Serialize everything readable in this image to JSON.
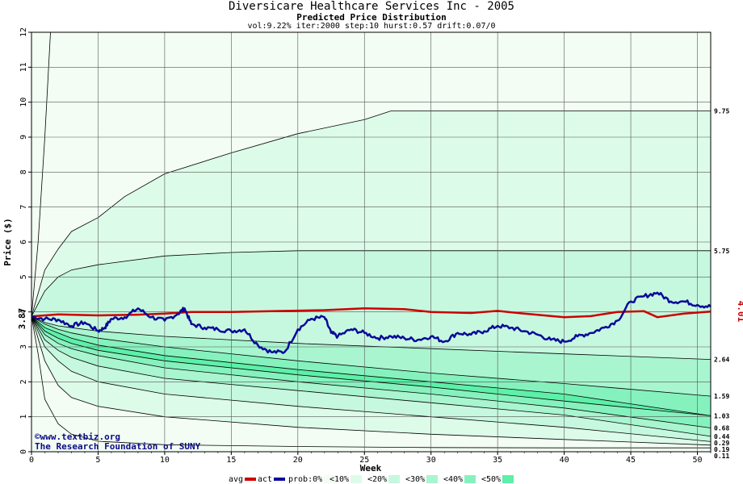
{
  "header": {
    "title": "Diversicare Healthcare Services Inc - 2005",
    "subtitle": "Predicted Price Distribution",
    "params": "vol:9.22% iter:2000 step:10 hurst:0.57 drift:0.07/0"
  },
  "watermark": {
    "line1": "©www.textbiz.org",
    "line2": "The Research Foundation of SUNY"
  },
  "colors": {
    "avg": "#cc0000",
    "act": "#0a0a99",
    "band_0": "#f3fdf3",
    "band_10": "#ddfbe9",
    "band_20": "#c6f8df",
    "band_30": "#a8f5cf",
    "band_40": "#85f2be",
    "band_50": "#5cf0a8",
    "grid": "#555555"
  },
  "chart_data": {
    "type": "line",
    "xlabel": "Week",
    "ylabel": "Price ($)",
    "xlim": [
      0,
      51
    ],
    "ylim": [
      0,
      12
    ],
    "xticks": [
      0,
      5,
      10,
      15,
      20,
      25,
      30,
      35,
      40,
      45,
      50
    ],
    "yticks": [
      0,
      1,
      2,
      3,
      4,
      5,
      6,
      7,
      8,
      9,
      10,
      11,
      12
    ],
    "start_price_label": "3.87",
    "end_price_label": "4.01",
    "right_labels": [
      {
        "value": 9.75,
        "label": "9.75"
      },
      {
        "value": 5.75,
        "label": "5.75"
      },
      {
        "value": 2.64,
        "label": "2.64"
      },
      {
        "value": 1.59,
        "label": "1.59"
      },
      {
        "value": 1.03,
        "label": "1.03"
      },
      {
        "value": 0.68,
        "label": "0.68"
      },
      {
        "value": 0.44,
        "label": "0.44"
      },
      {
        "value": 0.29,
        "label": "0.29"
      },
      {
        "value": 0.19,
        "label": "0.19"
      },
      {
        "value": 0.11,
        "label": "0.11"
      }
    ],
    "bands": [
      {
        "name": "prob:0%",
        "upper": [
          [
            0,
            3.87
          ],
          [
            0.5,
            6
          ],
          [
            1,
            9
          ],
          [
            1.5,
            12.5
          ]
        ],
        "lower": [
          [
            0,
            3.87
          ],
          [
            0.5,
            2.8
          ],
          [
            1,
            1.5
          ],
          [
            2,
            0.8
          ],
          [
            3,
            0.5
          ],
          [
            5,
            0.3
          ],
          [
            10,
            0.2
          ],
          [
            20,
            0.15
          ],
          [
            30,
            0.12
          ],
          [
            40,
            0.11
          ],
          [
            51,
            0.11
          ]
        ]
      },
      {
        "name": "<10%",
        "upper": [
          [
            0,
            3.87
          ],
          [
            1,
            5.2
          ],
          [
            2,
            5.8
          ],
          [
            3,
            6.3
          ],
          [
            5,
            6.7
          ],
          [
            7,
            7.3
          ],
          [
            10,
            7.95
          ],
          [
            15,
            8.55
          ],
          [
            20,
            9.1
          ],
          [
            25,
            9.5
          ],
          [
            27,
            9.75
          ],
          [
            51,
            9.75
          ]
        ],
        "lower": [
          [
            0,
            3.87
          ],
          [
            1,
            2.6
          ],
          [
            2,
            1.9
          ],
          [
            3,
            1.55
          ],
          [
            5,
            1.3
          ],
          [
            10,
            1.0
          ],
          [
            20,
            0.7
          ],
          [
            30,
            0.5
          ],
          [
            40,
            0.35
          ],
          [
            51,
            0.19
          ]
        ]
      },
      {
        "name": "<20%",
        "upper": [
          [
            0,
            3.87
          ],
          [
            1,
            4.6
          ],
          [
            2,
            5.0
          ],
          [
            3,
            5.2
          ],
          [
            5,
            5.35
          ],
          [
            10,
            5.6
          ],
          [
            15,
            5.7
          ],
          [
            20,
            5.75
          ],
          [
            51,
            5.75
          ]
        ],
        "lower": [
          [
            0,
            3.87
          ],
          [
            1,
            3.0
          ],
          [
            2,
            2.6
          ],
          [
            3,
            2.3
          ],
          [
            5,
            2.0
          ],
          [
            10,
            1.65
          ],
          [
            20,
            1.3
          ],
          [
            30,
            1.0
          ],
          [
            40,
            0.7
          ],
          [
            51,
            0.29
          ]
        ]
      },
      {
        "name": "<30%",
        "upper": [
          [
            0,
            3.87
          ],
          [
            1,
            3.7
          ],
          [
            2,
            3.6
          ],
          [
            3,
            3.55
          ],
          [
            5,
            3.45
          ],
          [
            10,
            3.3
          ],
          [
            20,
            3.1
          ],
          [
            30,
            2.95
          ],
          [
            40,
            2.8
          ],
          [
            51,
            2.64
          ]
        ],
        "lower": [
          [
            0,
            3.87
          ],
          [
            1,
            3.2
          ],
          [
            2,
            2.9
          ],
          [
            3,
            2.7
          ],
          [
            5,
            2.45
          ],
          [
            10,
            2.1
          ],
          [
            20,
            1.75
          ],
          [
            30,
            1.4
          ],
          [
            40,
            1.05
          ],
          [
            51,
            0.44
          ]
        ]
      },
      {
        "name": "<40%",
        "upper": [
          [
            0,
            3.87
          ],
          [
            1,
            3.65
          ],
          [
            2,
            3.5
          ],
          [
            3,
            3.4
          ],
          [
            5,
            3.25
          ],
          [
            10,
            3.0
          ],
          [
            20,
            2.6
          ],
          [
            30,
            2.25
          ],
          [
            40,
            1.95
          ],
          [
            51,
            1.59
          ]
        ],
        "lower": [
          [
            0,
            3.87
          ],
          [
            1,
            3.35
          ],
          [
            2,
            3.1
          ],
          [
            3,
            2.95
          ],
          [
            5,
            2.75
          ],
          [
            10,
            2.4
          ],
          [
            20,
            2.0
          ],
          [
            30,
            1.65
          ],
          [
            40,
            1.25
          ],
          [
            51,
            0.68
          ]
        ]
      },
      {
        "name": "<50%",
        "upper": [
          [
            0,
            3.87
          ],
          [
            1,
            3.55
          ],
          [
            2,
            3.4
          ],
          [
            3,
            3.25
          ],
          [
            5,
            3.05
          ],
          [
            10,
            2.75
          ],
          [
            20,
            2.35
          ],
          [
            30,
            2.0
          ],
          [
            40,
            1.65
          ],
          [
            51,
            1.03
          ]
        ],
        "lower": [
          [
            0,
            3.87
          ],
          [
            1,
            3.45
          ],
          [
            2,
            3.25
          ],
          [
            3,
            3.1
          ],
          [
            5,
            2.9
          ],
          [
            10,
            2.6
          ],
          [
            20,
            2.2
          ],
          [
            30,
            1.85
          ],
          [
            40,
            1.45
          ],
          [
            51,
            1.03
          ]
        ]
      }
    ],
    "series": [
      {
        "name": "avg",
        "points": [
          [
            0,
            3.87
          ],
          [
            2,
            3.93
          ],
          [
            5,
            3.9
          ],
          [
            8,
            3.92
          ],
          [
            10,
            3.95
          ],
          [
            12,
            4.0
          ],
          [
            15,
            4.0
          ],
          [
            18,
            4.02
          ],
          [
            22,
            4.05
          ],
          [
            25,
            4.1
          ],
          [
            28,
            4.08
          ],
          [
            30,
            4.0
          ],
          [
            33,
            3.97
          ],
          [
            35,
            4.03
          ],
          [
            37,
            3.95
          ],
          [
            40,
            3.85
          ],
          [
            42,
            3.88
          ],
          [
            44,
            4.0
          ],
          [
            46,
            4.02
          ],
          [
            47,
            3.85
          ],
          [
            49,
            3.95
          ],
          [
            51,
            4.01
          ]
        ]
      },
      {
        "name": "act",
        "points": [
          [
            0,
            3.87
          ],
          [
            1,
            3.8
          ],
          [
            2,
            3.78
          ],
          [
            3,
            3.6
          ],
          [
            4,
            3.7
          ],
          [
            5,
            3.45
          ],
          [
            5.5,
            3.55
          ],
          [
            6,
            3.8
          ],
          [
            7,
            3.85
          ],
          [
            8,
            4.1
          ],
          [
            9,
            3.85
          ],
          [
            10,
            3.75
          ],
          [
            11,
            3.95
          ],
          [
            11.5,
            4.1
          ],
          [
            12,
            3.65
          ],
          [
            13,
            3.55
          ],
          [
            14,
            3.5
          ],
          [
            15,
            3.45
          ],
          [
            16,
            3.5
          ],
          [
            17,
            3.05
          ],
          [
            18,
            2.85
          ],
          [
            19,
            2.85
          ],
          [
            20,
            3.5
          ],
          [
            21,
            3.8
          ],
          [
            22,
            3.85
          ],
          [
            22.5,
            3.4
          ],
          [
            23,
            3.3
          ],
          [
            24,
            3.5
          ],
          [
            25,
            3.4
          ],
          [
            26,
            3.25
          ],
          [
            27,
            3.3
          ],
          [
            28,
            3.25
          ],
          [
            29,
            3.2
          ],
          [
            30,
            3.3
          ],
          [
            31,
            3.15
          ],
          [
            32,
            3.4
          ],
          [
            33,
            3.35
          ],
          [
            34,
            3.45
          ],
          [
            35,
            3.6
          ],
          [
            36,
            3.55
          ],
          [
            37,
            3.45
          ],
          [
            38,
            3.35
          ],
          [
            39,
            3.2
          ],
          [
            40,
            3.15
          ],
          [
            41,
            3.3
          ],
          [
            42,
            3.4
          ],
          [
            43,
            3.55
          ],
          [
            44,
            3.75
          ],
          [
            45,
            4.3
          ],
          [
            46,
            4.45
          ],
          [
            47,
            4.55
          ],
          [
            48,
            4.3
          ],
          [
            49,
            4.3
          ],
          [
            50,
            4.2
          ],
          [
            51,
            4.15
          ]
        ]
      }
    ],
    "legend": {
      "placement": "bottom",
      "entries": [
        "avg",
        "act",
        "prob:0%",
        "<10%",
        "<20%",
        "<30%",
        "<40%",
        "<50%"
      ]
    }
  }
}
